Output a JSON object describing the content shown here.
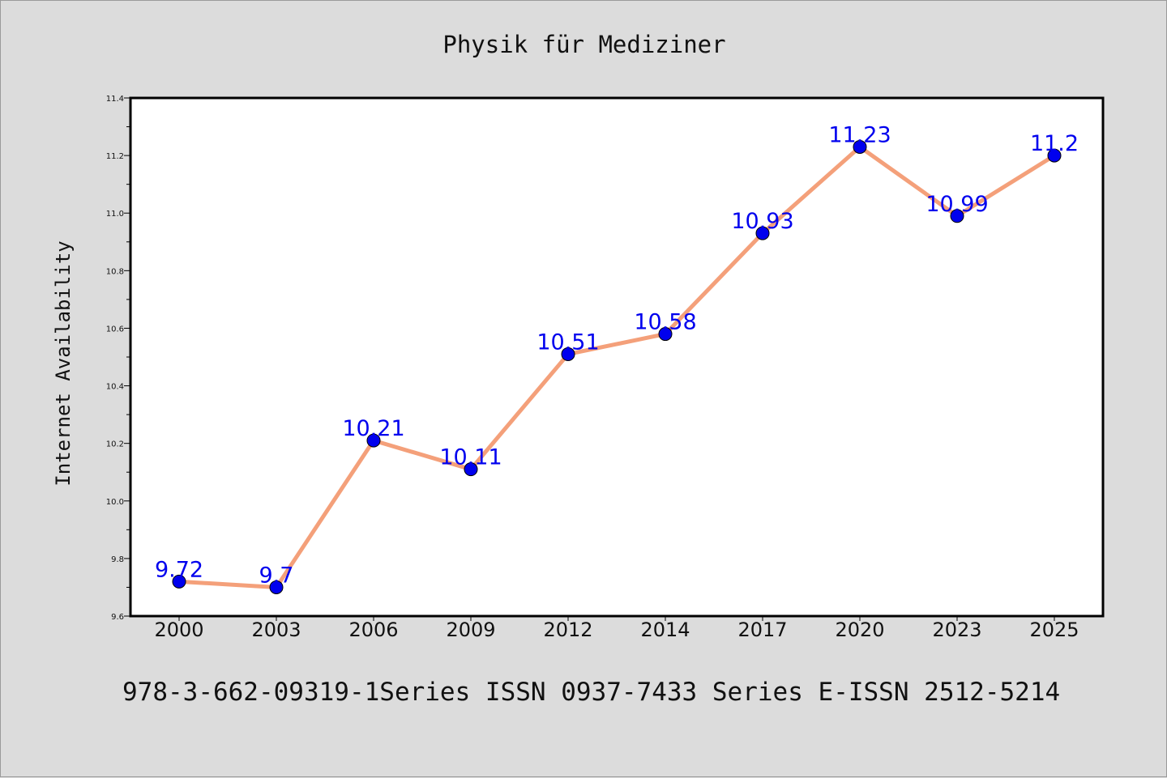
{
  "chart_data": {
    "type": "line",
    "title": "Physik für Mediziner",
    "xlabel": "",
    "ylabel": "Internet Availability",
    "categories": [
      "2000",
      "2003",
      "2006",
      "2009",
      "2012",
      "2014",
      "2017",
      "2020",
      "2023",
      "2025"
    ],
    "series": [
      {
        "values": [
          9.72,
          9.7,
          10.21,
          10.11,
          10.51,
          10.58,
          10.93,
          11.23,
          10.99,
          11.2
        ],
        "labels": [
          "9.72",
          "9.7",
          "10.21",
          "10.11",
          "10.51",
          "10.58",
          "10.93",
          "11.23",
          "10.99",
          "11.2"
        ],
        "line_color": "#f4a07a",
        "marker_color": "#0000ee",
        "label_color": "#0000ee"
      }
    ],
    "ylim": [
      9.6,
      11.4
    ],
    "yticks": [
      "9.6",
      "9.8",
      "10.0",
      "10.2",
      "10.4",
      "10.6",
      "10.8",
      "11.0",
      "11.2",
      "11.4"
    ],
    "grid": false,
    "legend": "none"
  },
  "footer": {
    "text": "978-3-662-09319-1Series ISSN 0937-7433 Series E-ISSN 2512-5214"
  },
  "colors": {
    "background": "#dcdcdc",
    "plot_background": "#ffffff"
  }
}
